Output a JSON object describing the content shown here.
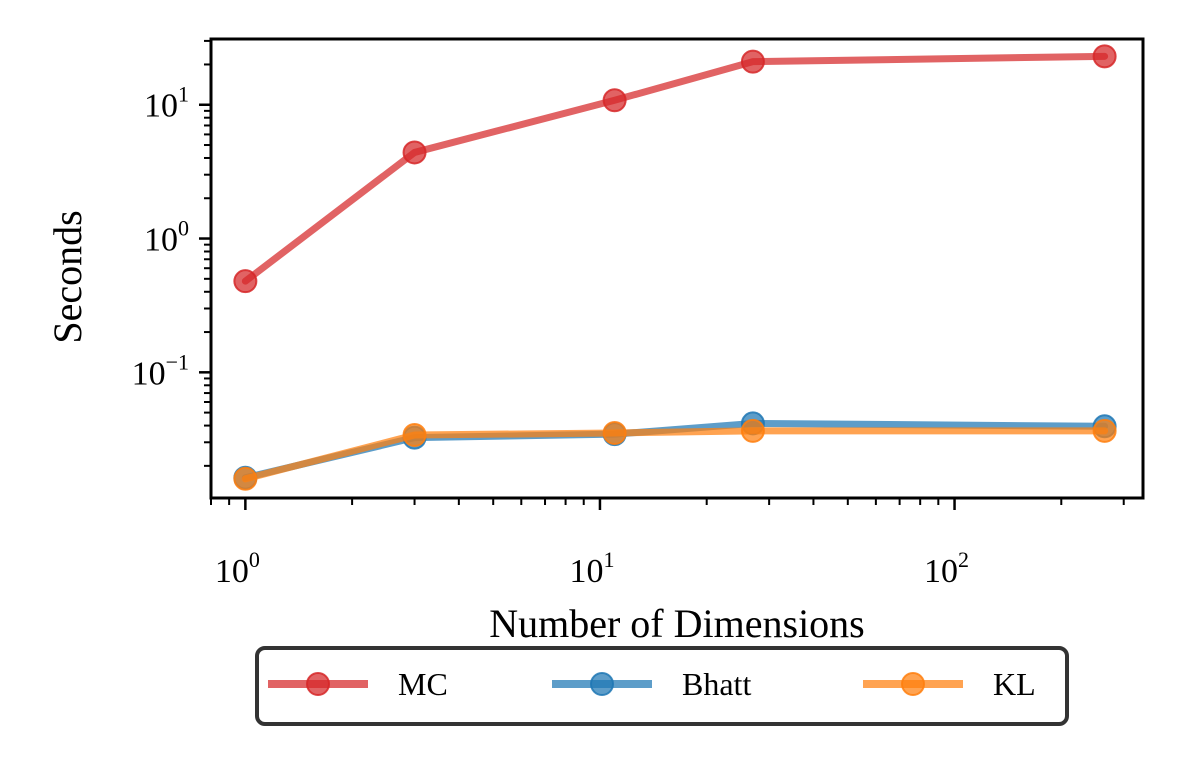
{
  "chart_data": {
    "type": "line",
    "xscale": "log",
    "yscale": "log",
    "xlabel": "Number of Dimensions",
    "ylabel": "Seconds",
    "xlim": [
      0.8,
      340
    ],
    "ylim": [
      0.0115,
      31
    ],
    "x_ticks": [
      {
        "base": "10",
        "exp": "0",
        "value": 1
      },
      {
        "base": "10",
        "exp": "1",
        "value": 10
      },
      {
        "base": "10",
        "exp": "2",
        "value": 100
      }
    ],
    "y_ticks": [
      {
        "base": "10",
        "exp": "−1",
        "value": 0.1
      },
      {
        "base": "10",
        "exp": "0",
        "value": 1
      },
      {
        "base": "10",
        "exp": "1",
        "value": 10
      }
    ],
    "series": [
      {
        "name": "MC",
        "color": "#d62728",
        "x": [
          1,
          3,
          11,
          27,
          265
        ],
        "values": [
          0.48,
          4.4,
          10.8,
          21,
          23
        ]
      },
      {
        "name": "Bhatt",
        "color": "#1f77b4",
        "x": [
          1,
          3,
          11,
          27,
          265
        ],
        "values": [
          0.0163,
          0.0325,
          0.0345,
          0.0415,
          0.0395
        ]
      },
      {
        "name": "KL",
        "color": "#ff7f0e",
        "x": [
          1,
          3,
          11,
          27,
          265
        ],
        "values": [
          0.016,
          0.034,
          0.0352,
          0.0365,
          0.0365
        ]
      }
    ],
    "legend": {
      "position": "bottom-center",
      "columns": 3
    }
  }
}
